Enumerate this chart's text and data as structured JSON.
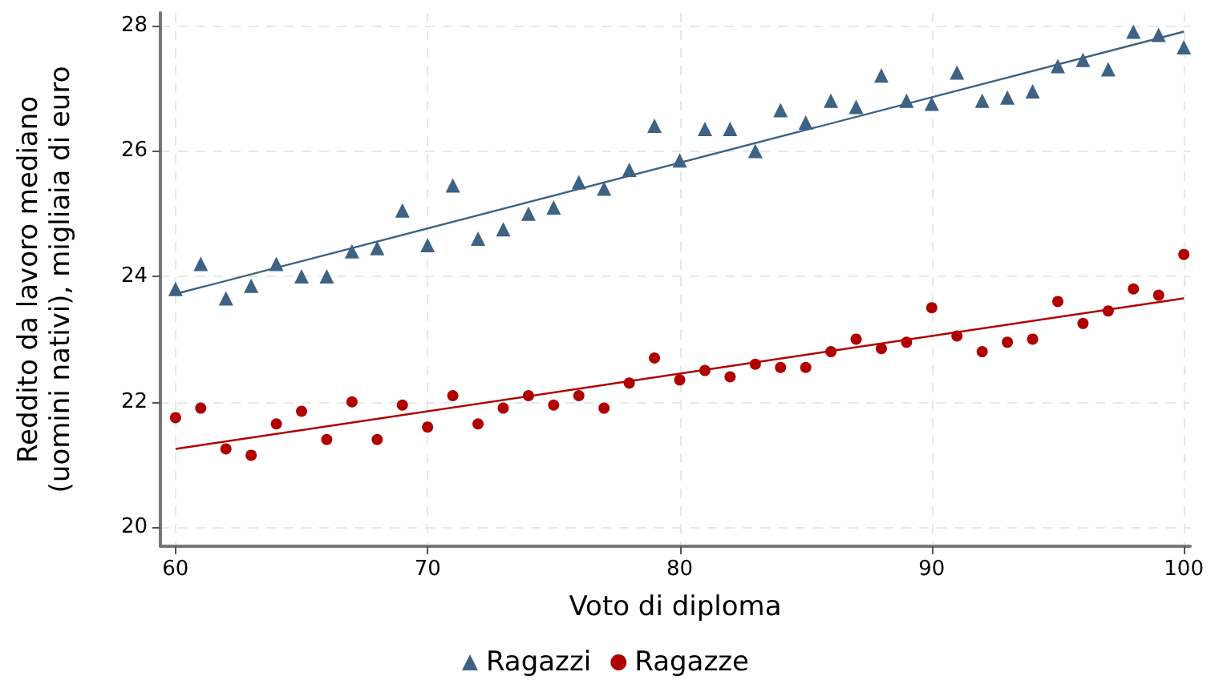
{
  "chart_data": {
    "type": "scatter",
    "xlabel": "Voto di diploma",
    "ylabel": "Reddito da lavoro mediano\n(uomini nativi), migliaia di euro",
    "x": [
      60,
      61,
      62,
      63,
      64,
      65,
      66,
      67,
      68,
      69,
      70,
      71,
      72,
      73,
      74,
      75,
      76,
      77,
      78,
      79,
      80,
      81,
      82,
      83,
      84,
      85,
      86,
      87,
      88,
      89,
      90,
      91,
      92,
      93,
      94,
      95,
      96,
      97,
      98,
      99,
      100
    ],
    "series": [
      {
        "name": "Ragazzi",
        "color": "#3d6283",
        "marker": "triangle",
        "values": [
          23.8,
          24.2,
          23.65,
          23.85,
          24.2,
          24.0,
          24.0,
          24.4,
          24.45,
          25.05,
          24.5,
          25.45,
          24.6,
          24.75,
          25.0,
          25.1,
          25.5,
          25.4,
          25.7,
          26.4,
          25.85,
          26.35,
          26.35,
          26.0,
          26.65,
          26.45,
          26.8,
          26.7,
          27.2,
          26.8,
          26.75,
          27.25,
          26.8,
          26.85,
          26.95,
          27.35,
          27.45,
          27.3,
          27.9,
          27.85,
          27.65
        ]
      },
      {
        "name": "Ragazze",
        "color": "#b00000",
        "marker": "circle",
        "values": [
          21.75,
          21.9,
          21.25,
          21.15,
          21.65,
          21.85,
          21.4,
          22.0,
          21.4,
          21.95,
          21.6,
          22.1,
          21.65,
          21.9,
          22.1,
          21.95,
          22.1,
          21.9,
          22.3,
          22.7,
          22.35,
          22.5,
          22.4,
          22.6,
          22.55,
          22.55,
          22.8,
          23.0,
          22.85,
          22.95,
          23.5,
          23.05,
          22.8,
          22.95,
          23.0,
          23.6,
          23.25,
          23.45,
          23.8,
          23.7,
          24.35
        ]
      },
      {
        "type": "line",
        "color": "#3d6283",
        "marker": "none",
        "values": [
          23.72,
          null,
          null,
          null,
          null,
          null,
          null,
          null,
          null,
          null,
          null,
          null,
          null,
          null,
          null,
          null,
          null,
          null,
          null,
          null,
          null,
          null,
          null,
          null,
          null,
          null,
          null,
          null,
          null,
          null,
          null,
          null,
          null,
          null,
          null,
          null,
          null,
          null,
          null,
          null,
          27.9
        ]
      },
      {
        "type": "line",
        "color": "#b00000",
        "marker": "none",
        "values": [
          21.25,
          null,
          null,
          null,
          null,
          null,
          null,
          null,
          null,
          null,
          null,
          null,
          null,
          null,
          null,
          null,
          null,
          null,
          null,
          null,
          null,
          null,
          null,
          null,
          null,
          null,
          null,
          null,
          null,
          null,
          null,
          null,
          null,
          null,
          null,
          null,
          null,
          null,
          null,
          null,
          23.65
        ]
      }
    ],
    "xlim": [
      59.4,
      100.25
    ],
    "xticks": [
      60,
      70,
      80,
      90,
      100
    ],
    "ylim": [
      19.7,
      28.2
    ],
    "yticks": [
      20,
      22,
      24,
      26,
      28
    ],
    "grid": true,
    "legend": "bottom"
  }
}
